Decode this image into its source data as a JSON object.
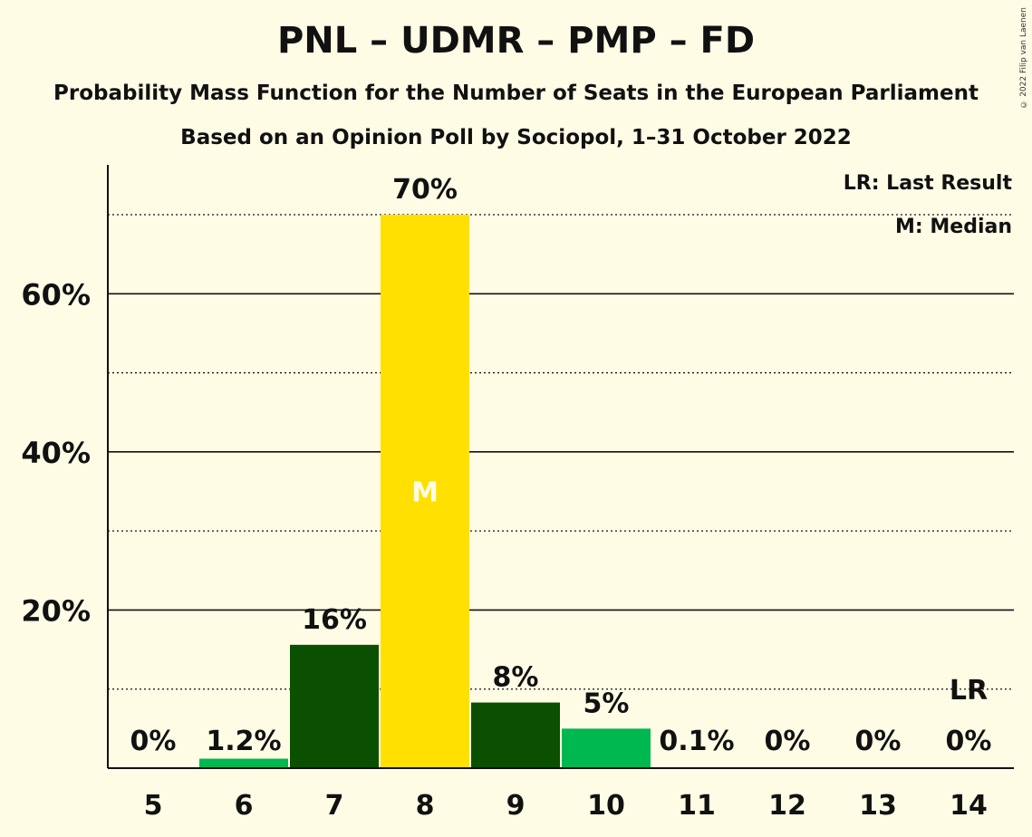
{
  "chart_data": {
    "type": "bar",
    "title": "PNL – UDMR – PMP – FD",
    "subtitle": "Probability Mass Function for the Number of Seats in the European Parliament",
    "subtitle2": "Based on an Opinion Poll by Sociopol, 1–31 October 2022",
    "copyright": "© 2022 Filip van Laenen",
    "legend": [
      "LR: Last Result",
      "M: Median"
    ],
    "legend_placement": "top-right",
    "categories": [
      "5",
      "6",
      "7",
      "8",
      "9",
      "10",
      "11",
      "12",
      "13",
      "14"
    ],
    "values": [
      0,
      1.2,
      15.6,
      70,
      8.3,
      5,
      0.1,
      0,
      0,
      0
    ],
    "labels": [
      "0%",
      "1.2%",
      "16%",
      "70%",
      "8%",
      "5%",
      "0.1%",
      "0%",
      "0%",
      "0%"
    ],
    "bar_colors": [
      "#00B850",
      "#00B850",
      "#0A5000",
      "#FFE000",
      "#0A5000",
      "#00B850",
      "#00B850",
      "#00B850",
      "#00B850",
      "#00B850"
    ],
    "median_category": "8",
    "median_marker": "M",
    "last_result_category": "14",
    "last_result_marker": "LR",
    "ylim": [
      0,
      76
    ],
    "yticks": [
      20,
      40,
      60
    ],
    "ytick_labels": [
      "20%",
      "40%",
      "60%"
    ],
    "minor_gridlines": [
      10,
      30,
      50,
      70
    ],
    "grid": true
  }
}
